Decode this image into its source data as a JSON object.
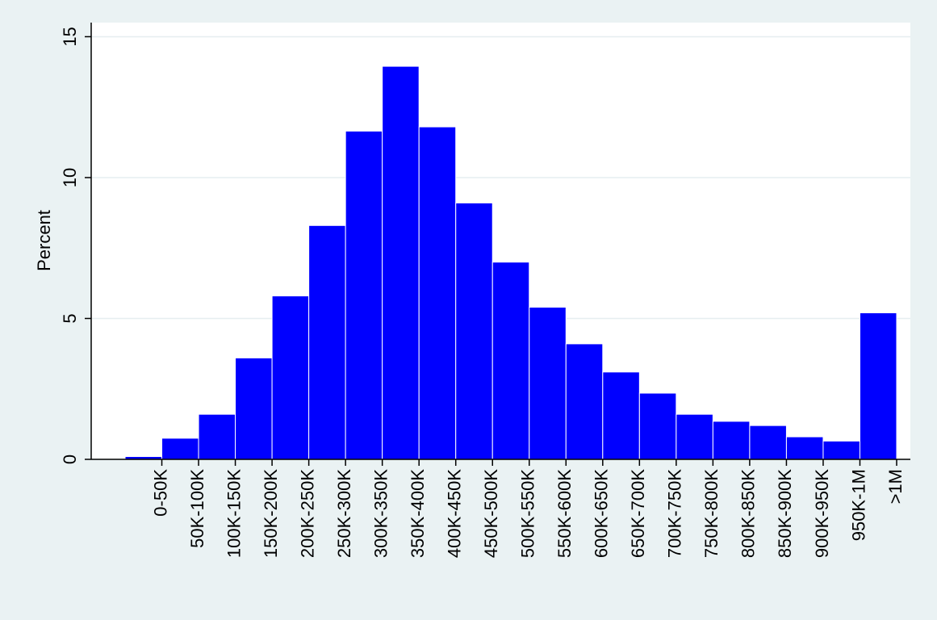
{
  "chart_data": {
    "type": "bar",
    "y_label": "Percent",
    "categories": [
      "0-50K",
      "50K-100K",
      "100K-150K",
      "150K-200K",
      "200K-250K",
      "250K-300K",
      "300K-350K",
      "350K-400K",
      "400K-450K",
      "450K-500K",
      "500K-550K",
      "550K-600K",
      "600K-650K",
      "650K-700K",
      "700K-750K",
      "750K-800K",
      "800K-850K",
      "850K-900K",
      "900K-950K",
      "950K-1M",
      ">1M"
    ],
    "values": [
      0.1,
      0.75,
      1.6,
      3.6,
      5.8,
      8.3,
      11.65,
      13.95,
      11.8,
      9.1,
      7.0,
      5.4,
      4.1,
      3.1,
      2.35,
      1.6,
      1.35,
      1.2,
      0.8,
      0.65,
      5.2
    ],
    "color": "#0000ff",
    "ylim": [
      0,
      15.5
    ],
    "yticks": [
      0,
      5,
      10,
      15
    ],
    "grid": true
  }
}
